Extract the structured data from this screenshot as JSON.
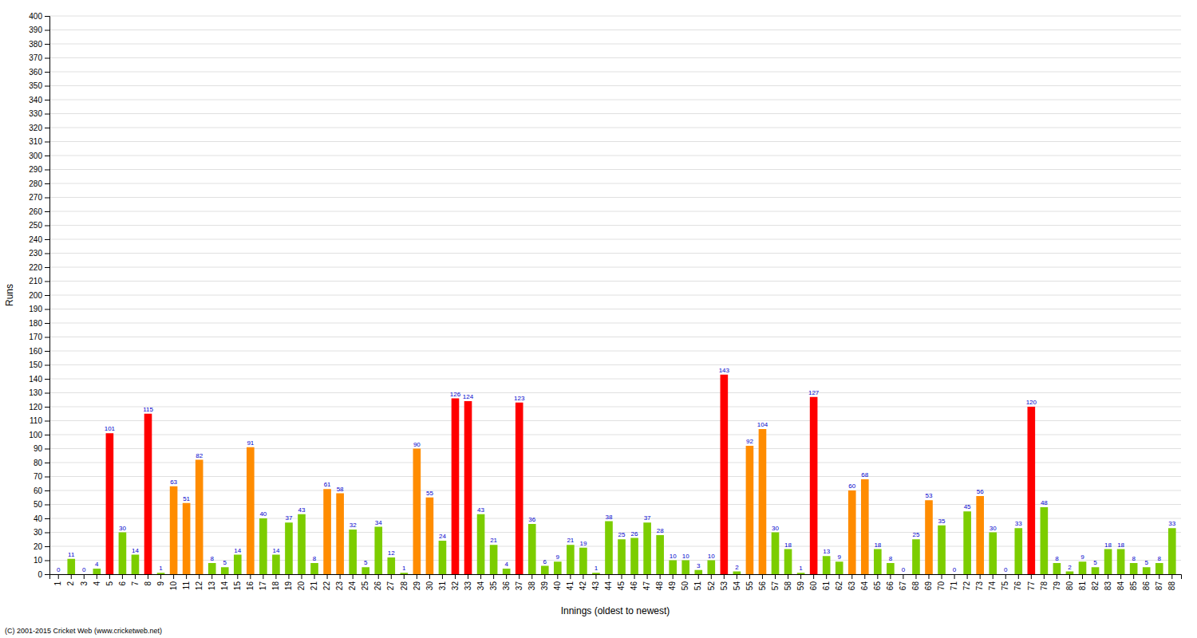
{
  "chart_data": {
    "type": "bar",
    "xlabel": "Innings (oldest to newest)",
    "ylabel": "Runs",
    "annotations": [
      "(C) 2001-2015 Cricket Web (www.cricketweb.net)"
    ],
    "categories": [
      "1",
      "2",
      "3",
      "4",
      "5",
      "6",
      "7",
      "8",
      "9",
      "10",
      "11",
      "12",
      "13",
      "14",
      "15",
      "16",
      "17",
      "18",
      "19",
      "20",
      "21",
      "22",
      "23",
      "24",
      "25",
      "26",
      "27",
      "28",
      "29",
      "30",
      "31",
      "32",
      "33",
      "34",
      "35",
      "36",
      "37",
      "38",
      "39",
      "40",
      "41",
      "42",
      "43",
      "44",
      "45",
      "46",
      "47",
      "48",
      "49",
      "50",
      "51",
      "52",
      "53",
      "54",
      "55",
      "56",
      "57",
      "58",
      "59",
      "60",
      "61",
      "62",
      "63",
      "64",
      "65",
      "66",
      "67",
      "68",
      "69",
      "70",
      "71",
      "72",
      "73",
      "74",
      "75",
      "76",
      "77",
      "78",
      "79",
      "80",
      "81",
      "82",
      "83",
      "84",
      "85",
      "86",
      "87",
      "88"
    ],
    "values": [
      0,
      11,
      0,
      4,
      101,
      30,
      14,
      115,
      1,
      63,
      51,
      82,
      8,
      5,
      14,
      91,
      40,
      14,
      37,
      43,
      8,
      61,
      58,
      32,
      5,
      34,
      12,
      1,
      90,
      55,
      24,
      126,
      124,
      43,
      21,
      4,
      123,
      36,
      6,
      9,
      21,
      19,
      1,
      38,
      25,
      26,
      37,
      28,
      10,
      10,
      3,
      10,
      143,
      2,
      92,
      104,
      30,
      18,
      1,
      127,
      13,
      9,
      60,
      68,
      18,
      8,
      0,
      25,
      53,
      35,
      0,
      45,
      56,
      30,
      0,
      33,
      120,
      48,
      8,
      2,
      9,
      5,
      18,
      18,
      8,
      5,
      8,
      33
    ],
    "colors": [
      "#7ccd00",
      "#7ccd00",
      "#7ccd00",
      "#7ccd00",
      "#ff0000",
      "#7ccd00",
      "#7ccd00",
      "#ff0000",
      "#7ccd00",
      "#ff8c00",
      "#ff8c00",
      "#ff8c00",
      "#7ccd00",
      "#7ccd00",
      "#7ccd00",
      "#ff8c00",
      "#7ccd00",
      "#7ccd00",
      "#7ccd00",
      "#7ccd00",
      "#7ccd00",
      "#ff8c00",
      "#ff8c00",
      "#7ccd00",
      "#7ccd00",
      "#7ccd00",
      "#7ccd00",
      "#7ccd00",
      "#ff8c00",
      "#ff8c00",
      "#7ccd00",
      "#ff0000",
      "#ff0000",
      "#7ccd00",
      "#7ccd00",
      "#7ccd00",
      "#ff0000",
      "#7ccd00",
      "#7ccd00",
      "#7ccd00",
      "#7ccd00",
      "#7ccd00",
      "#7ccd00",
      "#7ccd00",
      "#7ccd00",
      "#7ccd00",
      "#7ccd00",
      "#7ccd00",
      "#7ccd00",
      "#7ccd00",
      "#7ccd00",
      "#7ccd00",
      "#ff0000",
      "#7ccd00",
      "#ff8c00",
      "#ff8c00",
      "#7ccd00",
      "#7ccd00",
      "#7ccd00",
      "#ff0000",
      "#7ccd00",
      "#7ccd00",
      "#ff8c00",
      "#ff8c00",
      "#7ccd00",
      "#7ccd00",
      "#7ccd00",
      "#7ccd00",
      "#ff8c00",
      "#7ccd00",
      "#7ccd00",
      "#7ccd00",
      "#ff8c00",
      "#7ccd00",
      "#7ccd00",
      "#7ccd00",
      "#ff0000",
      "#7ccd00",
      "#7ccd00",
      "#7ccd00",
      "#7ccd00",
      "#7ccd00",
      "#7ccd00",
      "#7ccd00",
      "#7ccd00",
      "#7ccd00",
      "#7ccd00",
      "#7ccd00"
    ],
    "ylim": [
      0,
      400
    ],
    "yticks": [
      0,
      10,
      20,
      30,
      40,
      50,
      60,
      70,
      80,
      90,
      100,
      110,
      120,
      130,
      140,
      150,
      160,
      170,
      180,
      190,
      200,
      210,
      220,
      230,
      240,
      250,
      260,
      270,
      280,
      290,
      300,
      310,
      320,
      330,
      340,
      350,
      360,
      370,
      380,
      390,
      400
    ],
    "grid": true,
    "data_labels": true
  }
}
